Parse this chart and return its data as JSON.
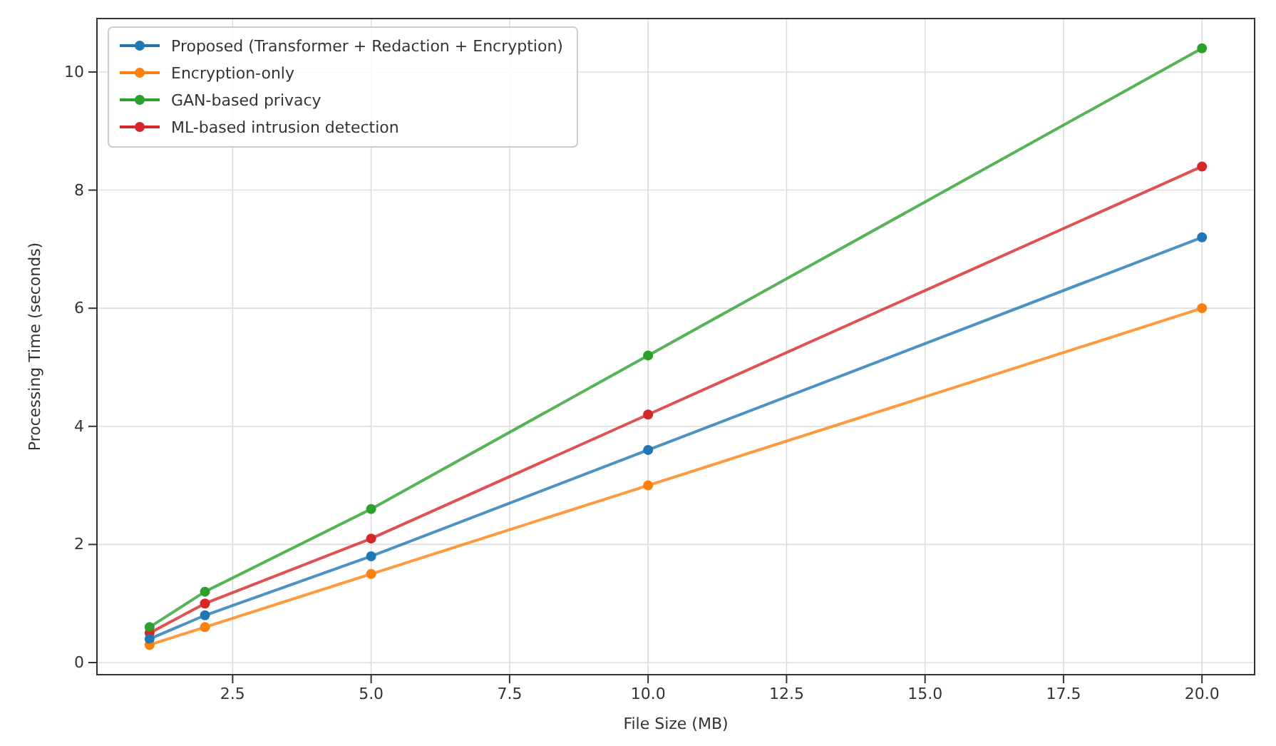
{
  "chart_data": {
    "type": "line",
    "xlabel": "File Size (MB)",
    "ylabel": "Processing Time (seconds)",
    "x": [
      1,
      2,
      5,
      10,
      20
    ],
    "series": [
      {
        "name": "Proposed (Transformer + Redaction + Encryption)",
        "color": "#1f77b4",
        "values": [
          0.4,
          0.8,
          1.8,
          3.6,
          7.2
        ]
      },
      {
        "name": "Encryption-only",
        "color": "#ff7f0e",
        "values": [
          0.3,
          0.6,
          1.5,
          3.0,
          6.0
        ]
      },
      {
        "name": "GAN-based privacy",
        "color": "#2ca02c",
        "values": [
          0.6,
          1.2,
          2.6,
          5.2,
          10.4
        ]
      },
      {
        "name": "ML-based intrusion detection",
        "color": "#d62728",
        "values": [
          0.5,
          1.0,
          2.1,
          4.2,
          8.4
        ]
      }
    ],
    "xlim": [
      0.05,
      20.95
    ],
    "ylim": [
      -0.205,
      10.905
    ],
    "xticks": [
      {
        "value": 2.5,
        "label": "2.5"
      },
      {
        "value": 5,
        "label": "5.0"
      },
      {
        "value": 7.5,
        "label": "7.5"
      },
      {
        "value": 10,
        "label": "10.0"
      },
      {
        "value": 12.5,
        "label": "12.5"
      },
      {
        "value": 15,
        "label": "15.0"
      },
      {
        "value": 17.5,
        "label": "17.5"
      },
      {
        "value": 20,
        "label": "20.0"
      }
    ],
    "yticks": [
      0,
      2,
      4,
      6,
      8,
      10
    ],
    "grid": true,
    "legend": "top left",
    "marker": "circle",
    "line_style": "solid"
  }
}
